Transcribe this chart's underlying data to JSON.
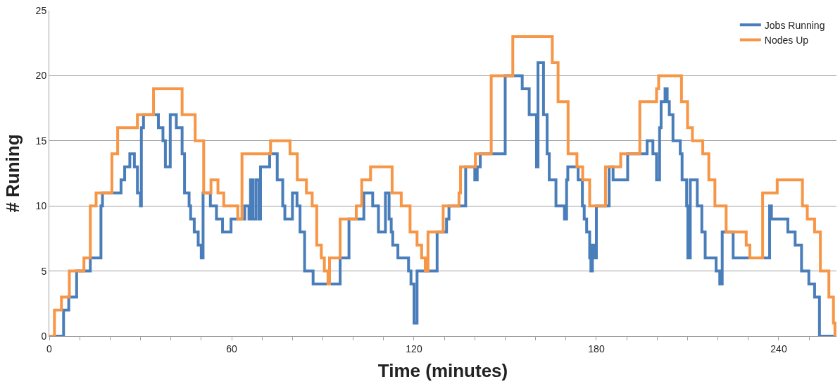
{
  "chart_data": {
    "type": "step",
    "xlabel": "Time (minutes)",
    "ylabel": "# Runing",
    "xlim": [
      0,
      259
    ],
    "ylim": [
      0,
      25
    ],
    "xticks": [
      0,
      {
        "value": 10,
        "label": null
      },
      {
        "value": 20,
        "label": null
      },
      {
        "value": 30,
        "label": null
      },
      {
        "value": 40,
        "label": null
      },
      {
        "value": 50,
        "label": null
      },
      60,
      {
        "value": 70,
        "label": null
      },
      {
        "value": 80,
        "label": null
      },
      {
        "value": 90,
        "label": null
      },
      {
        "value": 100,
        "label": null
      },
      {
        "value": 110,
        "label": null
      },
      120,
      {
        "value": 130,
        "label": null
      },
      {
        "value": 140,
        "label": null
      },
      {
        "value": 150,
        "label": null
      },
      {
        "value": 160,
        "label": null
      },
      {
        "value": 170,
        "label": null
      },
      180,
      {
        "value": 190,
        "label": null
      },
      {
        "value": 200,
        "label": null
      },
      {
        "value": 210,
        "label": null
      },
      {
        "value": 220,
        "label": null
      },
      {
        "value": 230,
        "label": null
      },
      240,
      {
        "value": 250,
        "label": null
      }
    ],
    "yticks": [
      0,
      5,
      10,
      15,
      20,
      25
    ],
    "grid": "y",
    "legend": "top right",
    "line_style": "solid",
    "series": [
      {
        "name": "Jobs Running",
        "color": "#4a7ebb",
        "x": [
          0,
          4.7,
          6.4,
          9,
          13.5,
          17,
          17.5,
          23.6,
          24.8,
          26.5,
          28,
          29,
          30,
          30.3,
          31,
          35.9,
          37.4,
          38.2,
          39.8,
          41.8,
          43.7,
          44.5,
          46,
          46.5,
          47.7,
          49,
          50,
          50.6,
          53,
          55,
          57,
          59.8,
          64.3,
          65.7,
          66.2,
          67,
          68,
          69,
          69.5,
          72.5,
          75,
          76.8,
          77.5,
          80,
          81.5,
          82.5,
          84,
          86.8,
          95.7,
          98.6,
          103.5,
          106.4,
          108.3,
          110.6,
          111.8,
          112.5,
          113,
          114.7,
          118.2,
          119,
          120,
          121,
          127.6,
          130.7,
          131.5,
          137,
          140,
          140.8,
          141.8,
          150,
          155.6,
          157.9,
          160.3,
          160.8,
          162.6,
          163.8,
          164.5,
          166.7,
          169.5,
          170.2,
          170.6,
          174,
          175.4,
          176,
          176.8,
          177.8,
          178.2,
          178.7,
          179.2,
          180,
          184.2,
          185.5,
          190.3,
          196.7,
          198.6,
          199.8,
          200.8,
          201.3,
          202.6,
          203.3,
          204,
          205.2,
          207.6,
          208.2,
          209.7,
          210.1,
          210.9,
          213.2,
          214.7,
          215.8,
          219.4,
          220.6,
          221.4,
          225,
          237,
          237.6,
          243,
          245.4,
          247.5,
          249.9,
          251.8,
          253.4,
          259
        ],
        "values": [
          0,
          2,
          3,
          5,
          6,
          10,
          11,
          12,
          13,
          14,
          13,
          11,
          10,
          16,
          17,
          16,
          15,
          13,
          17,
          16,
          14,
          11,
          10,
          9,
          8,
          7,
          6,
          11,
          10,
          9,
          8,
          9,
          10,
          9,
          12,
          9,
          12,
          9,
          13,
          14,
          12,
          10,
          9,
          11,
          10,
          8,
          5,
          4,
          6,
          9,
          11,
          10,
          8,
          11,
          9,
          8,
          7,
          6,
          5,
          4,
          1,
          5,
          8,
          9,
          10,
          13,
          12,
          13,
          14,
          20,
          19,
          17,
          13,
          21,
          17,
          14,
          12,
          10,
          9,
          12,
          13,
          12,
          10,
          9,
          8,
          6,
          5,
          7,
          6,
          10,
          13,
          12,
          14,
          15,
          14,
          12,
          16,
          18,
          19,
          18,
          17,
          15,
          14,
          12,
          10,
          6,
          12,
          10,
          8,
          6,
          5,
          4,
          8,
          6,
          10,
          9,
          8,
          7,
          5,
          4,
          3,
          0,
          0
        ]
      },
      {
        "name": "Nodes Up",
        "color": "#f79646",
        "x": [
          0,
          1.7,
          4,
          6.6,
          11.4,
          13.5,
          15.4,
          20.6,
          22.5,
          29,
          34.3,
          43.7,
          48,
          50.8,
          53.2,
          55.5,
          57.4,
          62,
          63.4,
          72.8,
          79.2,
          81.6,
          84.6,
          86.5,
          88,
          89.5,
          90.5,
          91.7,
          92.2,
          95.7,
          101,
          102.8,
          105.7,
          112.8,
          115.8,
          118.7,
          121,
          122.5,
          123.7,
          124.6,
          129.6,
          134.8,
          135.3,
          140.2,
          145.4,
          152.5,
          165.5,
          167.4,
          170.7,
          173.6,
          175.5,
          177.8,
          183,
          188,
          194.3,
          199.8,
          200.5,
          208,
          210,
          211.6,
          215,
          217,
          219,
          222.7,
          229.3,
          230.5,
          234.7,
          239.5,
          247.8,
          249.4,
          251.8,
          253.7,
          256.5,
          258,
          258.5,
          259
        ],
        "values": [
          0,
          2,
          3,
          5,
          6,
          10,
          11,
          14,
          16,
          17,
          19,
          17,
          15,
          11,
          12,
          11,
          10,
          9,
          14,
          15,
          14,
          12,
          11,
          10,
          7,
          6,
          5,
          4,
          6,
          9,
          10,
          12,
          13,
          11,
          10,
          8,
          7,
          6,
          5,
          8,
          10,
          11,
          13,
          14,
          20,
          23,
          21,
          18,
          14,
          13,
          12,
          10,
          13,
          14,
          18,
          19,
          20,
          18,
          16,
          15,
          14,
          12,
          10,
          8,
          7,
          6,
          11,
          12,
          10,
          9,
          8,
          5,
          3,
          1,
          0,
          0
        ]
      }
    ]
  }
}
